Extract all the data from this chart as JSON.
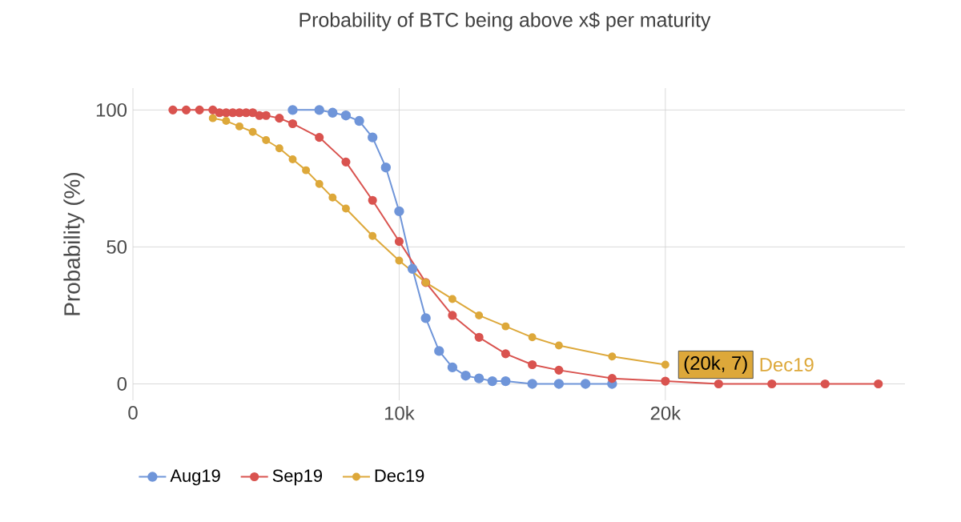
{
  "chart_data": {
    "type": "line",
    "title": "Probability of BTC being above x$ per maturity",
    "ylabel": "Probability (%)",
    "xlim": [
      0,
      29000
    ],
    "ylim": [
      -6,
      108
    ],
    "xticks": [
      {
        "value": 0,
        "label": "0"
      },
      {
        "value": 10000,
        "label": "10k"
      },
      {
        "value": 20000,
        "label": "20k"
      }
    ],
    "yticks": [
      0,
      50,
      100
    ],
    "grid": true,
    "legend": "bottom",
    "marker": "circle",
    "line_style": "solid",
    "annotations": [
      {
        "text": "(20k, 7)",
        "x": 20000,
        "y": 7
      },
      "Dec19"
    ],
    "series": [
      {
        "name": "Aug19",
        "color": "#6f95d9",
        "x": [
          6000,
          7000,
          7500,
          8000,
          8500,
          9000,
          9500,
          10000,
          10500,
          11000,
          11500,
          12000,
          12500,
          13000,
          13500,
          14000,
          15000,
          16000,
          17000,
          18000
        ],
        "values": [
          100,
          100,
          99,
          98,
          96,
          90,
          79,
          63,
          42,
          24,
          12,
          6,
          3,
          2,
          1,
          1,
          0,
          0,
          0,
          0
        ]
      },
      {
        "name": "Sep19",
        "color": "#d9534f",
        "x": [
          1500,
          2000,
          2500,
          3000,
          3250,
          3500,
          3750,
          4000,
          4250,
          4500,
          4750,
          5000,
          5500,
          6000,
          7000,
          8000,
          9000,
          10000,
          11000,
          12000,
          13000,
          14000,
          15000,
          16000,
          18000,
          20000,
          22000,
          24000,
          26000,
          28000
        ],
        "values": [
          100,
          100,
          100,
          100,
          99,
          99,
          99,
          99,
          99,
          99,
          98,
          98,
          97,
          95,
          90,
          81,
          67,
          52,
          37,
          25,
          17,
          11,
          7,
          5,
          2,
          1,
          0,
          0,
          0,
          0
        ]
      },
      {
        "name": "Dec19",
        "color": "#dda83a",
        "x": [
          3000,
          3500,
          4000,
          4500,
          5000,
          5500,
          6000,
          6500,
          7000,
          7500,
          8000,
          9000,
          10000,
          11000,
          12000,
          13000,
          14000,
          15000,
          16000,
          18000,
          20000
        ],
        "values": [
          97,
          96,
          94,
          92,
          89,
          86,
          82,
          78,
          73,
          68,
          64,
          54,
          45,
          37,
          31,
          25,
          21,
          17,
          14,
          10,
          7
        ]
      }
    ]
  }
}
